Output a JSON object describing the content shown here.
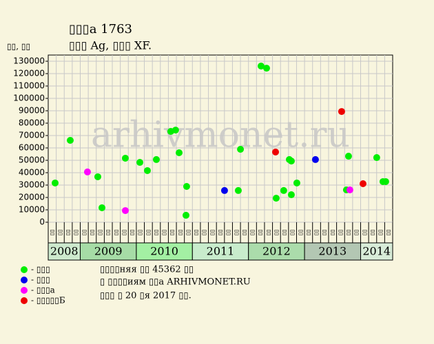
{
  "chart_data": {
    "type": "scatter",
    "title": "▯▯▯а 1763",
    "subtitle": "▯▯▯ Ag, ▯▯▯ XF.",
    "y_label": "▯▯, ▯▯",
    "watermark": "arhivmonet.ru",
    "ylim": [
      0,
      135000
    ],
    "yticks": [
      0,
      10000,
      20000,
      30000,
      40000,
      50000,
      60000,
      70000,
      80000,
      90000,
      100000,
      110000,
      120000,
      130000
    ],
    "xlim": [
      0,
      43
    ],
    "grid": true,
    "years": [
      {
        "label": "2008",
        "color": "#cde9cd",
        "months": [
          "▯▯",
          "▯▯",
          "▯▯",
          "▯▯"
        ]
      },
      {
        "label": "2009",
        "color": "#a6dca6",
        "months": [
          "▯▯",
          "▯▯",
          "▯▯",
          "▯▯",
          "▯▯",
          "▯▯",
          "▯▯"
        ]
      },
      {
        "label": "2010",
        "color": "#a3f0a3",
        "months": [
          "▯▯",
          "▯▯",
          "▯▯",
          "▯▯",
          "▯▯",
          "▯▯",
          "▯▯"
        ]
      },
      {
        "label": "2011",
        "color": "#c8eccc",
        "months": [
          "▯▯",
          "▯▯",
          "▯▯",
          "▯▯",
          "▯▯",
          "▯▯",
          "▯▯"
        ]
      },
      {
        "label": "2012",
        "color": "#abdcab",
        "months": [
          "▯▯",
          "▯▯",
          "▯▯",
          "▯▯",
          "▯▯",
          "▯▯",
          "▯▯"
        ]
      },
      {
        "label": "2013",
        "color": "#b3c7b3",
        "months": [
          "▯▯",
          "▯▯",
          "▯▯",
          "▯▯",
          "▯▯",
          "▯▯",
          "▯▯"
        ]
      },
      {
        "label": "2014",
        "color": "#d8ecd8",
        "months": [
          "▯▯",
          "▯▯",
          "▯▯",
          "▯▯"
        ]
      }
    ],
    "series": [
      {
        "name": "- ▯▯▯",
        "color": "#00ee00",
        "x": [
          0.86,
          2.75,
          6.19,
          6.71,
          9.63,
          11.44,
          12.38,
          13.5,
          15.3,
          15.9,
          16.34,
          17.28,
          17.2,
          23.73,
          24.0,
          26.57,
          27.26,
          28.46,
          29.4,
          30.1,
          30.35,
          30.35,
          31.04,
          37.23,
          37.49,
          41.01,
          41.79,
          42.13
        ],
        "values": [
          31700,
          66100,
          36700,
          11700,
          51700,
          48300,
          41700,
          50600,
          73300,
          74400,
          56100,
          28900,
          5600,
          25600,
          58900,
          126100,
          124400,
          19400,
          25600,
          50600,
          49400,
          22200,
          31700,
          26100,
          53300,
          52200,
          32800,
          32800
        ]
      },
      {
        "name": "- ▯▯▯",
        "color": "#0000ee",
        "x": [
          22.01,
          33.36
        ],
        "values": [
          25600,
          50600
        ]
      },
      {
        "name": "- ▯▯▯а",
        "color": "#ff00ff",
        "x": [
          4.9,
          9.63,
          37.66
        ],
        "values": [
          40600,
          9400,
          26100
        ]
      },
      {
        "name": "- ▯▯▯▯▯Б",
        "color": "#ee0000",
        "x": [
          28.38,
          36.63,
          39.3
        ],
        "values": [
          56700,
          89400,
          31100
        ]
      }
    ],
    "notes": [
      "▯▯▯▯няя ▯▯ 45362 ▯▯",
      "▯ ▯▯▯▯иям ▯▯а ARHIVMONET.RU",
      "▯▯▯ ▯ 20 ▯я 2017 ▯▯."
    ]
  }
}
